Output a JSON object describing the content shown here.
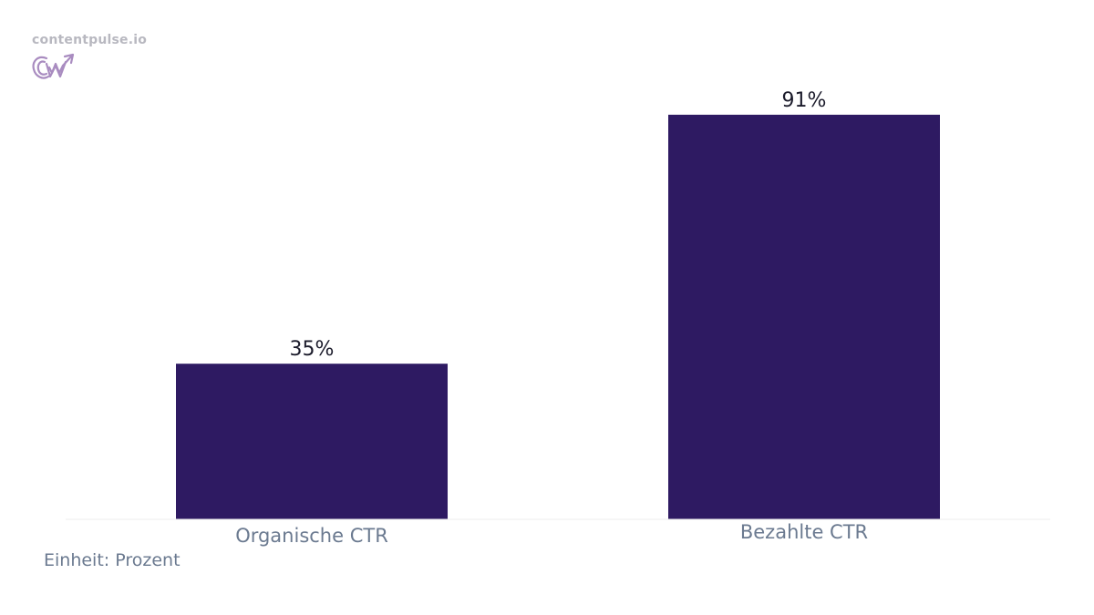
{
  "brand": {
    "name": "contentpulse.io",
    "logo_icon": "cw-growth-logo-icon",
    "logo_color": "#a98cc0"
  },
  "colors": {
    "bar": "#2e1a62",
    "value_label": "#1b1b2b",
    "category_label": "#6b7a90",
    "baseline": "#eeeeee"
  },
  "unit_note": "Einheit: Prozent",
  "chart_data": {
    "type": "bar",
    "categories": [
      "Organische CTR",
      "Bezahlte CTR"
    ],
    "values": [
      35,
      91
    ],
    "value_labels": [
      "35%",
      "91%"
    ],
    "title": "",
    "xlabel": "",
    "ylabel": "",
    "ylim": [
      0,
      100
    ],
    "grid": false,
    "legend": "none"
  }
}
